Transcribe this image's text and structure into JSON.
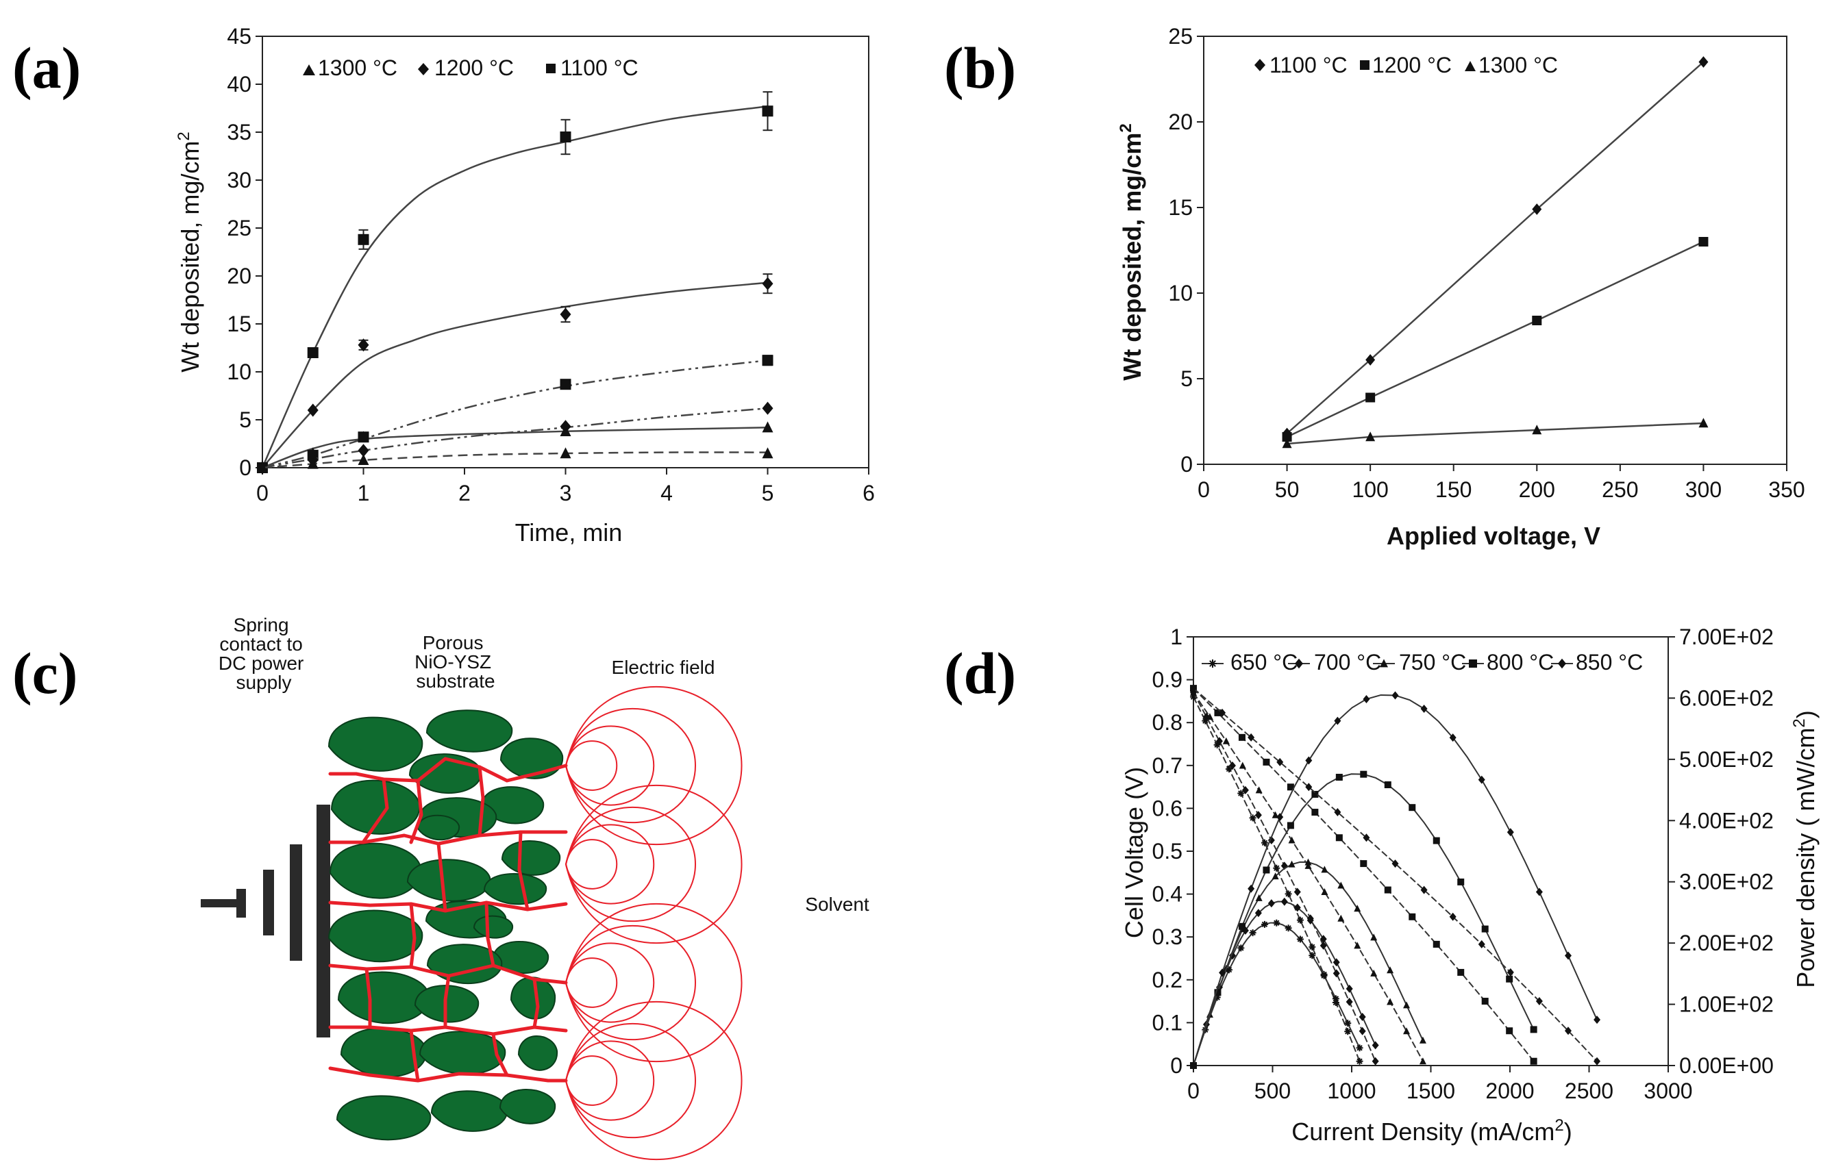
{
  "panels": {
    "a": "(a)",
    "b": "(b)",
    "c": "(c)",
    "d": "(d)"
  },
  "chart_data": [
    {
      "id": "a",
      "type": "line",
      "title": "",
      "xlabel": "Time, min",
      "ylabel": "Wt deposited, mg/cm",
      "ylabel_sup": "2",
      "xlim": [
        0,
        6
      ],
      "ylim": [
        0,
        45
      ],
      "xticks": [
        "0",
        "1",
        "2",
        "3",
        "4",
        "5",
        "6"
      ],
      "yticks": [
        "0",
        "5",
        "10",
        "15",
        "20",
        "25",
        "30",
        "35",
        "40",
        "45"
      ],
      "legend": [
        "1300 °C",
        "1200 °C",
        "1100 °C"
      ],
      "series": [
        {
          "name": "1100 °C",
          "marker": "square",
          "style": "solid",
          "x": [
            0,
            0.5,
            1,
            3,
            5
          ],
          "y": [
            0,
            12,
            23.8,
            34.5,
            37.2
          ],
          "err": [
            0,
            0,
            1,
            1.8,
            2
          ],
          "fit": [
            [
              0,
              0
            ],
            [
              0.5,
              12
            ],
            [
              1,
              22
            ],
            [
              1.5,
              28
            ],
            [
              2,
              31
            ],
            [
              2.5,
              32.8
            ],
            [
              3,
              34
            ],
            [
              4,
              36.3
            ],
            [
              5,
              37.7
            ]
          ]
        },
        {
          "name": "1200 °C",
          "marker": "diamond",
          "style": "solid",
          "x": [
            0,
            0.5,
            1,
            3,
            5
          ],
          "y": [
            0,
            6,
            12.8,
            16,
            19.2
          ],
          "err": [
            0,
            0,
            0.5,
            0.8,
            1
          ],
          "fit": [
            [
              0,
              0
            ],
            [
              0.5,
              6
            ],
            [
              1,
              11
            ],
            [
              1.5,
              13.3
            ],
            [
              2,
              14.8
            ],
            [
              3,
              16.8
            ],
            [
              4,
              18.3
            ],
            [
              5,
              19.3
            ]
          ]
        },
        {
          "name": "1300 °C",
          "marker": "triangle",
          "style": "solid",
          "x": [
            0,
            0.5,
            1,
            3,
            5
          ],
          "y": [
            0,
            1.5,
            3.2,
            3.8,
            4.2
          ],
          "err": [
            0,
            0,
            0,
            0,
            0
          ],
          "fit": [
            [
              0,
              0
            ],
            [
              0.5,
              2
            ],
            [
              1,
              3
            ],
            [
              2,
              3.5
            ],
            [
              3,
              3.8
            ],
            [
              4,
              4
            ],
            [
              5,
              4.2
            ]
          ]
        },
        {
          "name": "1100 °C (dashed)",
          "marker": "square",
          "style": "dashdot",
          "x": [
            0,
            0.5,
            1,
            3,
            5
          ],
          "y": [
            0,
            1.3,
            3.2,
            8.7,
            11.2
          ],
          "err": [
            0,
            0,
            0,
            0.3,
            0.5
          ],
          "fit": [
            [
              0,
              0
            ],
            [
              0.5,
              1.3
            ],
            [
              1,
              3
            ],
            [
              2,
              6.2
            ],
            [
              3,
              8.5
            ],
            [
              4,
              10
            ],
            [
              5,
              11.2
            ]
          ]
        },
        {
          "name": "1200 °C (dashed)",
          "marker": "diamond",
          "style": "dashdot",
          "x": [
            0,
            0.5,
            1,
            3,
            5
          ],
          "y": [
            0,
            0.8,
            1.8,
            4.3,
            6.2
          ],
          "err": [
            0,
            0,
            0,
            0,
            0
          ],
          "fit": [
            [
              0,
              0
            ],
            [
              0.5,
              0.9
            ],
            [
              1,
              1.8
            ],
            [
              2,
              3.2
            ],
            [
              3,
              4.2
            ],
            [
              4,
              5.3
            ],
            [
              5,
              6.2
            ]
          ]
        },
        {
          "name": "1300 °C (dashed)",
          "marker": "triangle",
          "style": "dashed",
          "x": [
            0,
            0.5,
            1,
            3,
            5
          ],
          "y": [
            0,
            0.4,
            0.8,
            1.5,
            1.5
          ],
          "err": [
            0,
            0,
            0,
            0,
            0
          ],
          "fit": [
            [
              0,
              0
            ],
            [
              0.5,
              0.4
            ],
            [
              1,
              0.8
            ],
            [
              2,
              1.3
            ],
            [
              3,
              1.5
            ],
            [
              4,
              1.6
            ],
            [
              5,
              1.6
            ]
          ]
        }
      ]
    },
    {
      "id": "b",
      "type": "line",
      "title": "",
      "xlabel": "Applied voltage, V",
      "ylabel": "Wt deposited, mg/cm",
      "ylabel_sup": "2",
      "xlim": [
        0,
        350
      ],
      "ylim": [
        0,
        25
      ],
      "xticks": [
        "0",
        "50",
        "100",
        "150",
        "200",
        "250",
        "300",
        "350"
      ],
      "yticks": [
        "0",
        "5",
        "10",
        "15",
        "20",
        "25"
      ],
      "legend": [
        "1100 °C",
        "1200 °C",
        "1300 °C"
      ],
      "series": [
        {
          "name": "1100 °C",
          "marker": "diamond",
          "x": [
            50,
            100,
            200,
            300
          ],
          "y": [
            1.8,
            6.1,
            14.9,
            23.5
          ]
        },
        {
          "name": "1200 °C",
          "marker": "square",
          "x": [
            50,
            100,
            200,
            300
          ],
          "y": [
            1.6,
            3.9,
            8.4,
            13.0
          ]
        },
        {
          "name": "1300 °C",
          "marker": "triangle",
          "x": [
            50,
            100,
            200,
            300
          ],
          "y": [
            1.2,
            1.6,
            2.0,
            2.4
          ]
        }
      ]
    },
    {
      "id": "d",
      "type": "line",
      "title": "",
      "xlabel": "Current Density (mA/cm",
      "xlabel_sup": "2",
      "xlabel_end": ")",
      "ylabel": "Cell Voltage (V)",
      "y2label": "Power density ( mW/cm",
      "y2label_sup": "2",
      "y2label_end": ")",
      "xlim": [
        0,
        3000
      ],
      "ylim": [
        0,
        1
      ],
      "y2lim": [
        0,
        700
      ],
      "xticks": [
        "0",
        "500",
        "1000",
        "1500",
        "2000",
        "2500",
        "3000"
      ],
      "yticks": [
        "0",
        "0.1",
        "0.2",
        "0.3",
        "0.4",
        "0.5",
        "0.6",
        "0.7",
        "0.8",
        "0.9",
        "1"
      ],
      "y2ticks": [
        "0.00E+00",
        "1.00E+02",
        "2.00E+02",
        "3.00E+02",
        "4.00E+02",
        "5.00E+02",
        "6.00E+02",
        "7.00E+02"
      ],
      "legend": [
        "650 °C",
        "700 °C",
        "750 °C",
        "800 °C",
        "850 °C"
      ],
      "series": [
        {
          "name": "650 °C",
          "marker": "star",
          "imax": 1050,
          "ocv": 0.86,
          "peak_power": 235
        },
        {
          "name": "700 °C",
          "marker": "diamond",
          "imax": 1150,
          "ocv": 0.87,
          "peak_power": 270
        },
        {
          "name": "750 °C",
          "marker": "triangle",
          "imax": 1450,
          "ocv": 0.87,
          "peak_power": 335
        },
        {
          "name": "800 °C",
          "marker": "square",
          "imax": 2150,
          "ocv": 0.88,
          "peak_power": 480
        },
        {
          "name": "850 °C",
          "marker": "diamond",
          "imax": 2550,
          "ocv": 0.88,
          "peak_power": 610
        }
      ]
    }
  ],
  "diagram": {
    "spring_label": [
      "Spring",
      "contact to",
      "DC power",
      "supply"
    ],
    "substrate_label": [
      "Porous",
      "NiO-YSZ",
      "substrate"
    ],
    "field_label": "Electric field",
    "solvent_label": "Solvent",
    "particle_color": "#0f6b2f",
    "network_color": "#e8202a",
    "field_color": "#e8202a",
    "electrode_color": "#2a2a2a"
  }
}
